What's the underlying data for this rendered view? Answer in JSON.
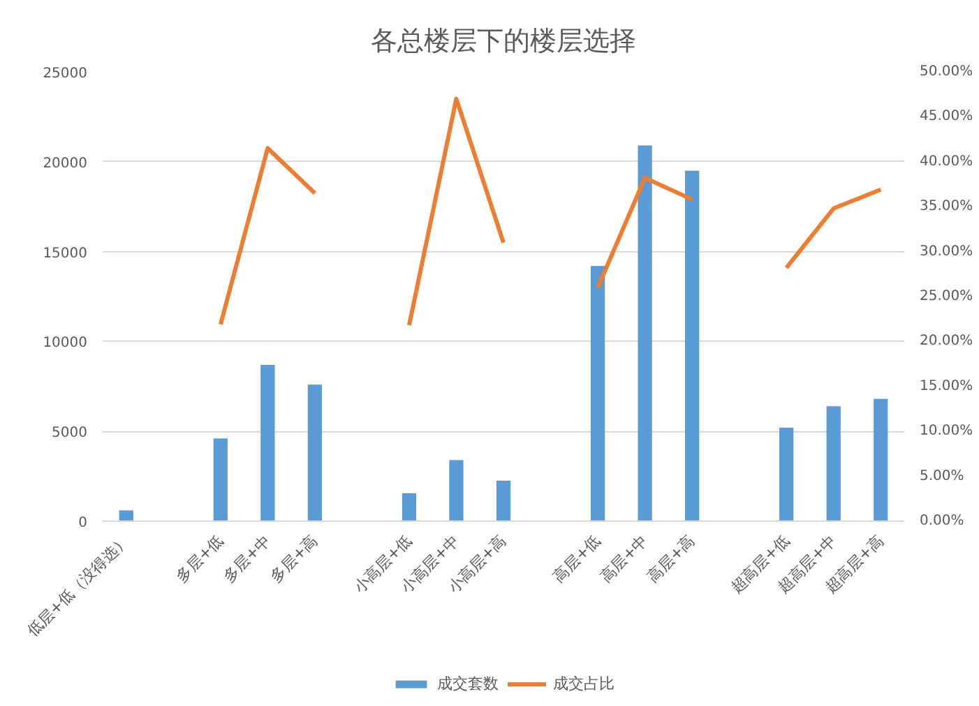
{
  "chart_data": {
    "type": "bar",
    "title": "各总楼层下的楼层选择",
    "categories": [
      "低层+低（没得选）",
      null,
      "多层+低",
      "多层+中",
      "多层+高",
      null,
      "小高层+低",
      "小高层+中",
      "小高层+高",
      null,
      "高层+低",
      "高层+中",
      "高层+高",
      null,
      "超高层+低",
      "超高层+中",
      "超高层+高"
    ],
    "series": [
      {
        "name": "成交套数",
        "color": "#5b9bd5",
        "values": [
          600,
          null,
          4600,
          8700,
          7600,
          null,
          1550,
          3400,
          2250,
          null,
          14200,
          20900,
          19500,
          null,
          5200,
          6400,
          6800
        ]
      },
      {
        "name": "成交占比",
        "type": "line",
        "axis": "y2",
        "color": "#ed7d31",
        "values": [
          null,
          null,
          21.9,
          41.5,
          36.5,
          null,
          21.8,
          47.0,
          31.0,
          null,
          26.0,
          38.2,
          35.8,
          null,
          28.2,
          34.8,
          36.9
        ]
      }
    ],
    "ylim": [
      0,
      25000
    ],
    "yticks": [
      0,
      5000,
      10000,
      15000,
      20000,
      25000
    ],
    "y2lim": [
      0,
      50
    ],
    "y2ticks": [
      {
        "value": 0,
        "label": "0.00%"
      },
      {
        "value": 5,
        "label": "5.00%"
      },
      {
        "value": 10,
        "label": "10.00%"
      },
      {
        "value": 15,
        "label": "15.00%"
      },
      {
        "value": 20,
        "label": "20.00%"
      },
      {
        "value": 25,
        "label": "25.00%"
      },
      {
        "value": 30,
        "label": "30.00%"
      },
      {
        "value": 35,
        "label": "35.00%"
      },
      {
        "value": 40,
        "label": "40.00%"
      },
      {
        "value": 45,
        "label": "45.00%"
      },
      {
        "value": 50,
        "label": "50.00%"
      }
    ],
    "grid": "y",
    "legend": "bottom"
  }
}
